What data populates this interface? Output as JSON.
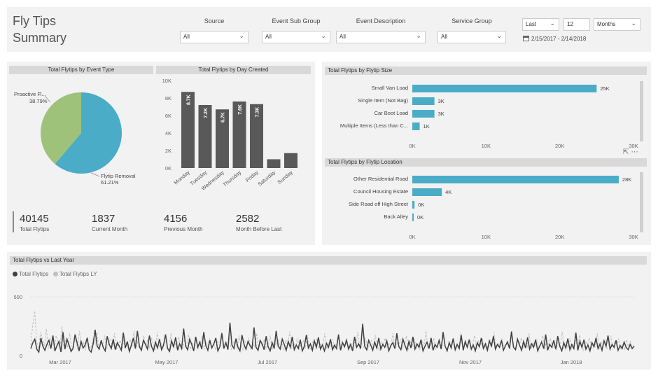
{
  "header": {
    "title_line1": "Fly Tips",
    "title_line2": "Summary",
    "filters": [
      {
        "label": "Source",
        "value": "All"
      },
      {
        "label": "Event Sub Group",
        "value": "All"
      },
      {
        "label": "Event Description",
        "value": "All"
      },
      {
        "label": "Service Group",
        "value": "All"
      }
    ],
    "relative_date": {
      "mode": "Last",
      "count": "12",
      "unit": "Months"
    },
    "date_range": "2/15/2017 - 2/14/2018"
  },
  "kpis": [
    {
      "value": "40145",
      "label": "Total Flytips"
    },
    {
      "value": "1837",
      "label": "Current Month"
    },
    {
      "value": "4156",
      "label": "Previous Month"
    },
    {
      "value": "2582",
      "label": "Month Before Last"
    }
  ],
  "colors": {
    "teal": "#4aacc6",
    "green": "#9ec27a",
    "dark_bar": "#595959",
    "panel": "#f2f2f2",
    "title_bar": "#d9d9d9"
  },
  "chart_data": [
    {
      "type": "pie",
      "title": "Total Flytips by Event Type",
      "slices": [
        {
          "label": "Flytip Removal",
          "display": "Flytip Removal",
          "percent_label": "61.21%",
          "value": 61.21
        },
        {
          "label": "Proactive Fl...",
          "display": "Proactive Fl...",
          "percent_label": "38.79%",
          "value": 38.79
        }
      ]
    },
    {
      "type": "bar",
      "title": "Total Flytips by Day Created",
      "categories": [
        "Monday",
        "Tuesday",
        "Wednesday",
        "Thursday",
        "Friday",
        "Saturday",
        "Sunday"
      ],
      "values": [
        8700,
        7200,
        6700,
        7600,
        7300,
        1000,
        1700
      ],
      "data_labels": [
        "8.7K",
        "7.2K",
        "6.7K",
        "7.6K",
        "7.3K",
        "",
        ""
      ],
      "ylim": [
        0,
        10000
      ],
      "yticks": [
        "0K",
        "2K",
        "4K",
        "6K",
        "8K",
        "10K"
      ]
    },
    {
      "type": "bar",
      "orientation": "horizontal",
      "title": "Total Flytips by Flytip Size",
      "categories": [
        "Small Van Load",
        "Single Item (Not Bag)",
        "Car Boot Load",
        "Multiple Items (Less than C..."
      ],
      "values": [
        25000,
        3000,
        3000,
        1000
      ],
      "data_labels": [
        "25K",
        "3K",
        "3K",
        "1K"
      ],
      "xlim": [
        0,
        30000
      ],
      "xticks": [
        "0K",
        "10K",
        "20K",
        "30K"
      ]
    },
    {
      "type": "bar",
      "orientation": "horizontal",
      "title": "Total Flytips by Flytip Location",
      "categories": [
        "Other Residential Road",
        "Council Housing Estate",
        "Side Road off High Street",
        "Back Alley"
      ],
      "values": [
        28000,
        4000,
        300,
        100
      ],
      "data_labels": [
        "28K",
        "4K",
        "0K",
        "0K"
      ],
      "xlim": [
        0,
        30000
      ],
      "xticks": [
        "0K",
        "10K",
        "20K",
        "30K"
      ]
    },
    {
      "type": "line",
      "title": "Total Flytips vs Last Year",
      "ylim": [
        0,
        500
      ],
      "yticks": [
        "0",
        "500"
      ],
      "xticks": [
        "Mar 2017",
        "May 2017",
        "Jul 2017",
        "Sep 2017",
        "Nov 2017",
        "Jan 2018"
      ],
      "series": [
        {
          "name": "Total Flytips",
          "color": "#404040",
          "values": [
            60,
            110,
            140,
            55,
            30,
            150,
            80,
            45,
            95,
            130,
            60,
            170,
            40,
            85,
            120,
            30,
            200,
            55,
            140,
            90,
            35,
            60,
            180,
            110,
            40,
            120,
            65,
            90,
            150,
            50,
            30,
            100,
            220,
            80,
            55,
            130,
            70,
            40,
            165,
            95,
            60,
            140,
            50,
            110,
            80,
            45,
            195,
            65,
            120,
            35,
            90,
            150,
            60,
            210,
            75,
            45,
            130,
            95,
            55,
            170,
            80,
            40,
            115,
            65,
            140,
            50,
            90,
            180,
            60,
            35,
            125,
            75,
            155,
            45,
            100,
            60,
            230,
            80,
            50,
            140,
            95,
            40,
            160,
            70,
            115,
            55,
            200,
            85,
            45,
            130,
            65,
            100,
            150,
            40,
            75,
            190,
            60,
            110,
            50,
            280,
            90,
            60,
            145,
            70,
            40,
            175,
            95,
            55,
            120,
            85,
            60,
            240,
            70,
            45,
            130,
            100,
            50,
            165,
            75,
            40,
            110,
            60,
            210,
            80,
            55,
            140,
            95,
            45,
            120,
            70,
            160,
            50,
            90,
            60,
            135,
            40,
            80,
            175,
            65,
            100,
            45,
            125,
            70,
            155,
            55,
            90,
            40,
            105,
            70,
            140,
            50,
            90,
            60,
            180,
            45,
            110,
            75,
            130,
            55,
            95,
            40,
            160,
            70,
            100,
            60,
            270,
            80,
            50,
            130,
            90,
            45,
            115,
            65,
            150,
            55,
            95,
            70,
            125,
            40,
            85,
            110,
            60,
            190,
            75,
            50,
            140,
            90,
            45,
            120,
            65,
            160,
            55,
            100,
            70,
            135,
            40,
            80,
            115,
            60,
            150,
            45,
            95,
            70,
            130,
            55,
            200,
            80,
            40,
            110,
            65,
            145,
            50,
            95,
            60,
            175,
            45,
            120,
            70,
            135,
            55,
            90,
            40,
            110,
            75,
            150,
            60,
            100,
            45,
            125,
            80,
            165,
            55,
            95,
            70,
            130,
            45,
            85,
            115,
            60,
            205,
            70,
            50,
            140,
            90,
            45,
            120,
            65,
            155,
            55,
            100,
            70,
            135,
            40,
            80,
            115,
            60,
            180,
            45,
            95,
            70,
            130,
            55,
            165,
            80,
            40,
            110,
            65,
            145,
            50,
            95,
            60,
            195,
            45,
            120,
            70,
            135,
            55,
            90,
            40,
            110,
            75,
            150,
            60,
            100,
            45,
            125,
            80,
            170,
            55,
            95,
            70,
            130,
            45,
            85,
            60,
            115,
            70,
            50,
            95,
            60,
            80
          ]
        },
        {
          "name": "Total Flytips LY",
          "color": "#bfbfbf",
          "values": [
            90,
            260,
            380,
            120,
            60,
            200,
            140,
            80,
            230,
            60,
            150,
            90,
            40,
            170,
            110,
            60,
            250,
            80,
            130,
            70,
            190,
            50,
            100,
            140,
            60,
            210,
            90,
            120,
            45,
            160,
            80,
            60,
            140,
            95,
            200,
            55,
            120,
            80,
            170,
            60,
            110,
            140,
            75,
            190,
            50,
            100,
            130,
            65,
            160,
            90,
            55,
            140,
            80,
            210,
            60,
            120,
            95,
            45,
            170,
            80,
            130,
            60,
            150,
            90,
            55,
            200,
            75,
            110,
            60,
            140,
            85,
            45,
            190,
            70,
            120,
            60,
            160,
            90,
            50,
            130,
            80,
            180,
            55,
            110,
            75,
            140,
            60,
            95,
            170,
            50,
            120,
            80,
            150,
            60,
            100,
            45,
            130,
            85,
            200,
            60,
            110,
            70,
            150,
            55,
            95,
            130,
            60,
            170,
            80,
            45,
            120,
            90,
            150,
            60,
            100,
            75,
            190,
            55,
            115,
            80,
            140,
            60,
            95,
            170,
            50,
            125,
            85,
            145,
            60,
            100,
            45,
            135,
            80,
            205,
            60,
            110,
            70,
            150,
            55,
            95,
            130,
            60,
            175,
            80,
            45,
            120,
            90,
            150,
            60,
            100,
            75,
            190,
            55,
            115,
            80,
            140,
            60,
            95,
            170,
            50,
            125,
            85,
            145,
            60,
            100,
            45,
            135,
            80,
            200,
            60,
            110,
            70,
            150,
            55,
            95,
            130,
            60,
            175,
            80,
            45,
            120,
            90,
            150,
            60,
            100,
            75,
            190,
            55,
            115,
            80,
            140,
            60,
            95,
            170,
            50,
            125,
            85,
            145,
            60,
            100,
            45,
            135,
            80,
            210,
            60,
            110,
            70,
            150,
            55,
            95,
            130,
            60,
            175,
            80,
            45,
            120,
            90,
            150,
            60,
            100,
            75,
            190,
            55,
            115,
            80,
            140,
            60,
            95,
            170,
            50,
            125,
            85,
            145,
            60,
            100,
            45,
            135,
            80,
            200,
            60,
            110,
            70,
            150,
            55,
            95,
            130,
            60,
            175,
            80,
            45,
            120,
            90,
            150,
            60,
            100,
            75,
            190,
            55,
            115,
            80,
            140,
            60,
            95,
            170,
            50,
            125,
            85,
            145,
            60,
            100,
            45,
            135,
            80,
            205,
            60,
            110,
            70,
            150,
            55,
            95,
            130,
            60,
            175,
            80,
            45,
            120,
            90,
            150,
            60,
            100,
            75,
            190,
            55,
            115,
            80,
            140,
            60,
            95,
            170,
            50,
            125,
            85,
            145,
            60,
            100,
            45,
            135,
            80,
            120,
            60,
            90
          ]
        }
      ]
    }
  ]
}
